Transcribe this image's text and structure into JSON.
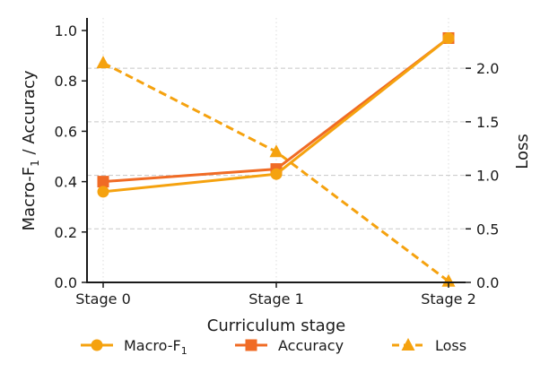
{
  "chart_data": {
    "type": "line",
    "categories": [
      "Stage 0",
      "Stage 1",
      "Stage 2"
    ],
    "xlabel": "Curriculum stage",
    "ylabel_left": "Macro-F1 / Accuracy",
    "ylabel_right": "Loss",
    "ylim_left": [
      0.0,
      1.05
    ],
    "ylim_right": [
      0.0,
      2.47
    ],
    "yticks_left": [
      "0.0",
      "0.2",
      "0.4",
      "0.6",
      "0.8",
      "1.0"
    ],
    "yticks_right": [
      "0.0",
      "0.5",
      "1.0",
      "1.5",
      "2.0"
    ],
    "grid": "dotted vertical, dashed horizontal (right axis)",
    "legend_placement": "bottom",
    "series": [
      {
        "name": "Macro-F1",
        "axis": "left",
        "values": [
          0.36,
          0.43,
          0.97
        ],
        "marker": "circle",
        "line": "solid",
        "color": "#f5a20f"
      },
      {
        "name": "Accuracy",
        "axis": "left",
        "values": [
          0.4,
          0.45,
          0.97
        ],
        "marker": "square",
        "line": "solid",
        "color": "#f06b25"
      },
      {
        "name": "Loss",
        "axis": "right",
        "values": [
          2.05,
          1.22,
          0.01
        ],
        "marker": "triangle",
        "line": "dashed",
        "color": "#f5a20f"
      }
    ]
  }
}
